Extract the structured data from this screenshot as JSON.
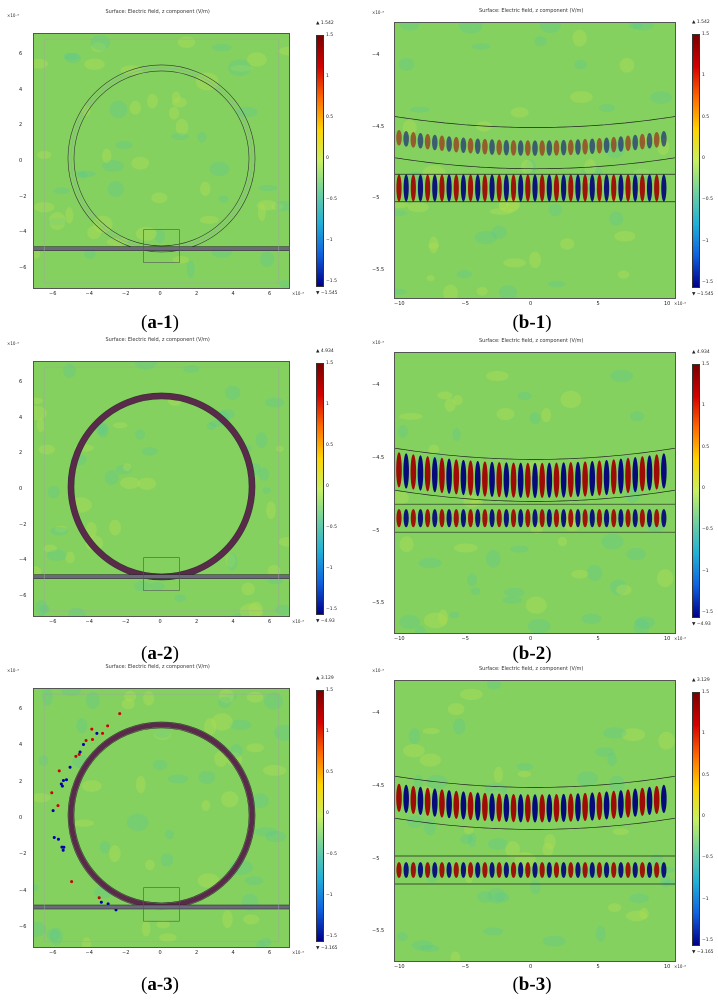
{
  "sim_title": "Surface: Electric field, z component (V/m)",
  "colorbar_ticks": [
    "1.5",
    "1",
    "0.5",
    "0",
    "−0.5",
    "−1",
    "−1.5"
  ],
  "panels": [
    {
      "id": "a1",
      "type": "a",
      "caption": "a-1",
      "max": "▲ 1.542",
      "min": "▼ −1.545"
    },
    {
      "id": "b1",
      "type": "b",
      "caption": "b-1",
      "max": "▲ 1.542",
      "min": "▼ −1.545"
    },
    {
      "id": "a2",
      "type": "a",
      "caption": "a-2",
      "max": "▲ 4.934",
      "min": "▼ −4.93"
    },
    {
      "id": "b2",
      "type": "b",
      "caption": "b-2",
      "max": "▲ 4.934",
      "min": "▼ −4.93"
    },
    {
      "id": "a3",
      "type": "a",
      "caption": "a-3",
      "max": "▲ 3.129",
      "min": "▼ −3.165"
    },
    {
      "id": "b3",
      "type": "b",
      "caption": "b-3",
      "max": "▲ 3.129",
      "min": "▼ −3.165"
    }
  ],
  "a_axes": {
    "yticks": [
      "6",
      "4",
      "2",
      "0",
      "−2",
      "−4",
      "−6"
    ],
    "xticks": [
      "−6",
      "−4",
      "−2",
      "0",
      "2",
      "4",
      "6"
    ],
    "exp": "×10⁻⁵"
  },
  "b_axes": {
    "yticks": [
      "−4",
      "−4.5",
      "−5",
      "−5.5"
    ],
    "xticks": [
      "−10",
      "−5",
      "0",
      "5",
      "10"
    ],
    "exp_y": "×10⁻⁵",
    "exp_x": "×10⁻⁶"
  },
  "colors": {
    "background": "#84d160",
    "positive": "#a00000",
    "negative": "#000080",
    "frame": "#555555"
  }
}
